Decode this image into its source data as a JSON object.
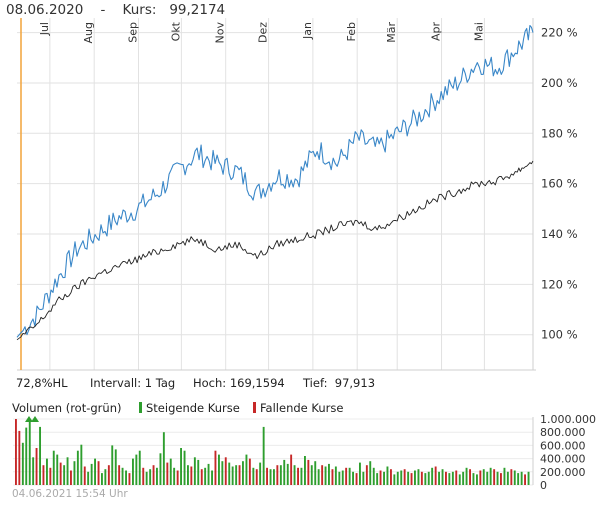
{
  "header": {
    "date": "08.06.2020",
    "separator": "-",
    "price_label": "Kurs:",
    "price_value": "99,2174"
  },
  "stats": {
    "hl": "72,8%HL",
    "interval": "Intervall: 1 Tag",
    "high": "Hoch: 169,1594",
    "low": "Tief:  97,913"
  },
  "volume_legend": {
    "title": "Volumen (rot-grün)",
    "rising": "Steigende Kurse",
    "falling": "Fallende Kurse"
  },
  "footer": {
    "timestamp": "04.06.2021 15:54 Uhr"
  },
  "colors": {
    "blue_series": "#3a87c8",
    "black_series": "#222222",
    "rising": "#2e9e2e",
    "falling": "#c62828",
    "marker": "#f2a33a",
    "grid": "#e2e2e2"
  },
  "chart_data": [
    {
      "type": "line",
      "x": [
        "2020-06-08",
        "2020-06-22",
        "2020-07-06",
        "2020-07-20",
        "2020-08-03",
        "2020-08-17",
        "2020-08-31",
        "2020-09-14",
        "2020-09-28",
        "2020-10-12",
        "2020-10-26",
        "2020-11-09",
        "2020-11-23",
        "2020-12-07",
        "2020-12-21",
        "2021-01-04",
        "2021-01-18",
        "2021-02-01",
        "2021-02-15",
        "2021-03-01",
        "2021-03-15",
        "2021-03-29",
        "2021-04-12",
        "2021-04-26",
        "2021-05-10",
        "2021-05-24",
        "2021-06-04"
      ],
      "x_tick_labels": [
        "Jul",
        "Aug",
        "Sep",
        "Okt",
        "Nov",
        "Dez",
        "Jan",
        "Feb",
        "Mär",
        "Apr",
        "Mai"
      ],
      "x_tick_dates": [
        "2020-07-01",
        "2020-08-01",
        "2020-09-01",
        "2020-10-01",
        "2020-11-01",
        "2020-12-01",
        "2021-01-01",
        "2021-02-01",
        "2021-03-01",
        "2021-04-01",
        "2021-05-01"
      ],
      "series": [
        {
          "values": [
            99,
            108,
            122,
            134,
            140,
            146,
            150,
            156,
            165,
            172,
            168,
            165,
            156,
            163,
            162,
            174,
            168,
            178,
            174,
            180,
            186,
            194,
            200,
            208,
            206,
            214,
            220
          ]
        },
        {
          "values": [
            98,
            104,
            113,
            119,
            124,
            127,
            130,
            133,
            136,
            138,
            134,
            136,
            131,
            136,
            138,
            140,
            143,
            145,
            142,
            146,
            150,
            154,
            157,
            160,
            161,
            165,
            169
          ]
        }
      ],
      "y_ticks": [
        "100 %",
        "120 %",
        "140 %",
        "160 %",
        "180 %",
        "200 %",
        "220 %"
      ],
      "y_tick_values": [
        100,
        120,
        140,
        160,
        180,
        200,
        220
      ],
      "ylim": [
        86,
        225
      ],
      "grid": true
    },
    {
      "type": "bar",
      "y_ticks": [
        "1.000.000",
        "800.000",
        "600.000",
        "400.000",
        "200.000",
        "0"
      ],
      "y_tick_values": [
        1000000,
        800000,
        600000,
        400000,
        200000,
        0
      ],
      "ylim": [
        0,
        1000000
      ],
      "values": [
        1000000,
        820000,
        640000,
        870000,
        1000000,
        420000,
        560000,
        880000,
        300000,
        400000,
        260000,
        520000,
        460000,
        340000,
        300000,
        420000,
        220000,
        360000,
        520000,
        610000,
        280000,
        200000,
        320000,
        400000,
        360000,
        180000,
        240000,
        300000,
        600000,
        540000,
        300000,
        260000,
        220000,
        180000,
        400000,
        460000,
        520000,
        260000,
        200000,
        240000,
        300000,
        260000,
        480000,
        800000,
        340000,
        400000,
        260000,
        220000,
        560000,
        520000,
        300000,
        280000,
        420000,
        380000,
        240000,
        260000,
        320000,
        220000,
        520000,
        460000,
        360000,
        420000,
        340000,
        280000,
        300000,
        300000,
        360000,
        460000,
        400000,
        260000,
        240000,
        340000,
        880000,
        260000,
        240000,
        240000,
        300000,
        300000,
        380000,
        320000,
        460000,
        300000,
        260000,
        260000,
        440000,
        380000,
        300000,
        360000,
        240000,
        300000,
        280000,
        320000,
        240000,
        280000,
        200000,
        220000,
        260000,
        260000,
        200000,
        180000,
        340000,
        200000,
        300000,
        360000,
        260000,
        180000,
        220000,
        200000,
        280000,
        240000,
        160000,
        200000,
        220000,
        240000,
        200000,
        180000,
        220000,
        240000,
        200000,
        180000,
        200000,
        260000,
        280000,
        200000,
        240000,
        200000,
        180000,
        200000,
        220000,
        160000,
        200000,
        260000,
        240000,
        180000,
        160000,
        220000,
        240000,
        200000,
        260000,
        240000,
        200000,
        180000,
        260000,
        200000,
        240000,
        220000,
        180000,
        200000,
        160000,
        200000
      ],
      "directions": [
        "f",
        "f",
        "r",
        "r",
        "r",
        "r",
        "f",
        "r",
        "f",
        "r",
        "f",
        "r",
        "r",
        "f",
        "r",
        "r",
        "f",
        "r",
        "r",
        "r",
        "f",
        "r",
        "r",
        "r",
        "f",
        "r",
        "r",
        "f",
        "r",
        "r",
        "f",
        "r",
        "r",
        "f",
        "r",
        "r",
        "r",
        "f",
        "r",
        "r",
        "f",
        "r",
        "r",
        "r",
        "f",
        "r",
        "r",
        "f",
        "r",
        "r",
        "r",
        "f",
        "r",
        "r",
        "f",
        "r",
        "r",
        "r",
        "f",
        "r",
        "r",
        "f",
        "r",
        "r",
        "r",
        "f",
        "r",
        "r",
        "f",
        "r",
        "f",
        "r",
        "r",
        "f",
        "r",
        "r",
        "f",
        "r",
        "r",
        "r",
        "f",
        "r",
        "f",
        "r",
        "r",
        "f",
        "r",
        "r",
        "r",
        "f",
        "r",
        "r",
        "f",
        "r",
        "r",
        "r",
        "f",
        "r",
        "r",
        "f",
        "r",
        "r",
        "f",
        "r",
        "r",
        "r",
        "f",
        "r",
        "r",
        "f",
        "r",
        "r",
        "r",
        "f",
        "r",
        "f",
        "r",
        "r",
        "f",
        "r",
        "r",
        "r",
        "f",
        "r",
        "r",
        "f",
        "r",
        "r",
        "f",
        "r",
        "r",
        "r",
        "f",
        "r",
        "r",
        "f",
        "r",
        "r",
        "r",
        "f",
        "r",
        "f",
        "r",
        "r",
        "f",
        "r",
        "r",
        "r",
        "f",
        "r"
      ]
    }
  ]
}
